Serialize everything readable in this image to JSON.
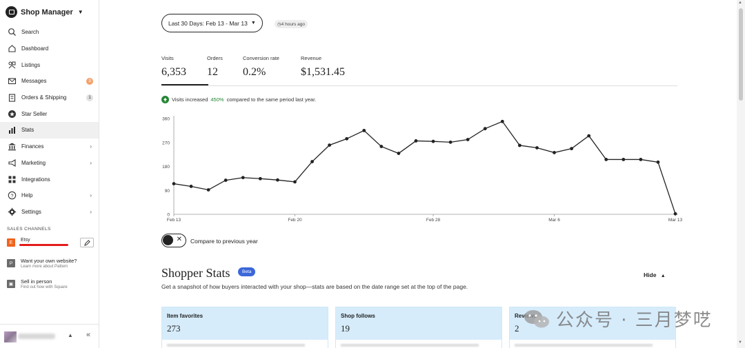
{
  "sidebar": {
    "title": "Shop Manager",
    "items": [
      {
        "label": "Search",
        "icon": "search-icon"
      },
      {
        "label": "Dashboard",
        "icon": "home-icon"
      },
      {
        "label": "Listings",
        "icon": "listings-icon"
      },
      {
        "label": "Messages",
        "icon": "mail-icon",
        "badge": "3"
      },
      {
        "label": "Orders & Shipping",
        "icon": "clipboard-icon",
        "badge": "1"
      },
      {
        "label": "Star Seller",
        "icon": "star-seller-icon"
      },
      {
        "label": "Stats",
        "icon": "bar-chart-icon",
        "active": true
      },
      {
        "label": "Finances",
        "icon": "bank-icon",
        "chevron": true
      },
      {
        "label": "Marketing",
        "icon": "megaphone-icon",
        "chevron": true
      },
      {
        "label": "Integrations",
        "icon": "grid-icon"
      },
      {
        "label": "Help",
        "icon": "help-icon",
        "chevron": true
      },
      {
        "label": "Settings",
        "icon": "gear-icon",
        "chevron": true
      }
    ],
    "sales_channels_heading": "SALES CHANNELS",
    "channel": {
      "label": "Etsy",
      "icon_letter": "E"
    },
    "promos": [
      {
        "title": "Want your own website?",
        "subtitle": "Learn more about Pattern",
        "icon_letter": "P"
      },
      {
        "title": "Sell in person",
        "subtitle": "Find out how with Square",
        "icon_letter": "▣"
      }
    ],
    "footer": {
      "up_glyph": "▲",
      "collapse_glyph": "«"
    }
  },
  "header": {
    "date_range": "Last 30 Days: Feb 13 - Mar 13",
    "updated": "4 hours ago"
  },
  "metrics": [
    {
      "label": "Visits",
      "value": "6,353"
    },
    {
      "label": "Orders",
      "value": "12"
    },
    {
      "label": "Conversion rate",
      "value": "0.2%"
    },
    {
      "label": "Revenue",
      "value": "$1,531.45"
    }
  ],
  "insight": {
    "prefix": "Visits increased",
    "percent": "450%",
    "suffix": "compared to the same period last year."
  },
  "chart_data": {
    "type": "line",
    "title": "",
    "xlabel": "",
    "ylabel": "",
    "ylim": [
      0,
      360
    ],
    "yticks": [
      0,
      90,
      180,
      270,
      360
    ],
    "xtick_labels": [
      "Feb 13",
      "Feb 20",
      "Feb 28",
      "Mar 6",
      "Mar 13"
    ],
    "xtick_indices": [
      0,
      7,
      15,
      22,
      29
    ],
    "x": [
      "Feb 13",
      "Feb 14",
      "Feb 15",
      "Feb 16",
      "Feb 17",
      "Feb 18",
      "Feb 19",
      "Feb 20",
      "Feb 21",
      "Feb 22",
      "Feb 23",
      "Feb 24",
      "Feb 25",
      "Feb 26",
      "Feb 27",
      "Feb 28",
      "Feb 29",
      "Mar 1",
      "Mar 2",
      "Mar 3",
      "Mar 4",
      "Mar 5",
      "Mar 6",
      "Mar 7",
      "Mar 8",
      "Mar 9",
      "Mar 10",
      "Mar 11",
      "Mar 12",
      "Mar 13"
    ],
    "series": [
      {
        "values": [
          115,
          105,
          92,
          128,
          138,
          134,
          129,
          122,
          198,
          260,
          284,
          315,
          255,
          229,
          276,
          274,
          271,
          281,
          322,
          349,
          259,
          250,
          232,
          247,
          295,
          206,
          206,
          206,
          196,
          2
        ]
      }
    ],
    "grid": false,
    "color": "#222222"
  },
  "compare": {
    "label": "Compare to previous year",
    "x_glyph": "✕"
  },
  "shopper_stats": {
    "title": "Shopper Stats",
    "badge": "Beta",
    "subtitle": "Get a snapshot of how buyers interacted with your shop—stats are based on the date range set at the top of the page.",
    "hide_label": "Hide",
    "cards": [
      {
        "label": "Item favorites",
        "value": "273"
      },
      {
        "label": "Shop follows",
        "value": "19"
      },
      {
        "label": "Reviews",
        "value": "2"
      }
    ]
  },
  "watermark": {
    "text": "公众号 · 三月梦呓"
  }
}
